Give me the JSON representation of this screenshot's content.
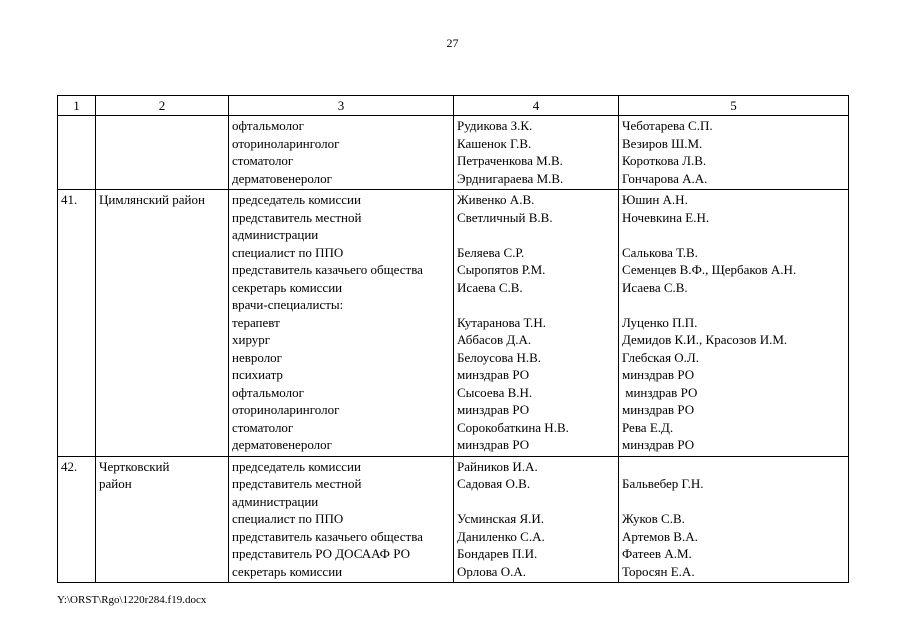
{
  "page": {
    "number": "27"
  },
  "footer": {
    "path": "Y:\\ORST\\Rgo\\1220r284.f19.docx"
  },
  "table": {
    "headers": [
      "1",
      "2",
      "3",
      "4",
      "5"
    ],
    "rows": [
      {
        "num": "",
        "district": [],
        "positions": [
          "офтальмолог",
          "оториноларинголог",
          "стоматолог",
          "дерматовенеролог"
        ],
        "members": [
          "Рудикова З.К.",
          "Кашенок Г.В.",
          "Петраченкова М.В.",
          "Эрднигараева М.В."
        ],
        "reserve": [
          "Чеботарева С.П.",
          "Везиров Ш.М.",
          "Короткова Л.В.",
          "Гончарова А.А."
        ]
      },
      {
        "num": "41.",
        "district": [
          "Цимлянский район"
        ],
        "positions": [
          "председатель комиссии",
          "представитель местной",
          "администрации",
          "специалист по ППО",
          "представитель казачьего общества",
          "секретарь комиссии",
          "врачи-специалисты:",
          "терапевт",
          "хирург",
          "невролог",
          "психиатр",
          "офтальмолог",
          "оториноларинголог",
          "стоматолог",
          "дерматовенеролог"
        ],
        "members": [
          "Живенко А.В.",
          "Светличный В.В.",
          "",
          "Беляева С.Р.",
          "Сыропятов Р.М.",
          "Исаева С.В.",
          "",
          "Кутаранова Т.Н.",
          "Аббасов Д.А.",
          "Белоусова Н.В.",
          "минздрав РО",
          "Сысоева В.Н.",
          "минздрав РО",
          "Сорокобаткина Н.В.",
          "минздрав РО"
        ],
        "reserve": [
          "Юшин А.Н.",
          "Ночевкина Е.Н.",
          "",
          "Салькова Т.В.",
          "Семенцев В.Ф., Щербаков А.Н.",
          "Исаева С.В.",
          "",
          "Луценко П.П.",
          "Демидов К.И., Красозов И.М.",
          "Глебская О.Л.",
          "минздрав РО",
          " минздрав РО",
          "минздрав РО",
          "Рева Е.Д.",
          "минздрав РО"
        ]
      },
      {
        "num": "42.",
        "district": [
          "Чертковский",
          "район"
        ],
        "positions": [
          "председатель комиссии",
          "представитель местной",
          "администрации",
          "специалист по ППО",
          "представитель казачьего общества",
          "представитель РО ДОСААФ РО",
          "секретарь комиссии"
        ],
        "members": [
          "Райников И.А.",
          "Садовая О.В.",
          "",
          "Усминская Я.И.",
          "Даниленко С.А.",
          "Бондарев П.И.",
          "Орлова О.А."
        ],
        "reserve": [
          "",
          "Бальвебер Г.Н.",
          "",
          "Жуков С.В.",
          "Артемов В.А.",
          "Фатеев А.М.",
          "Торосян Е.А."
        ]
      }
    ]
  }
}
